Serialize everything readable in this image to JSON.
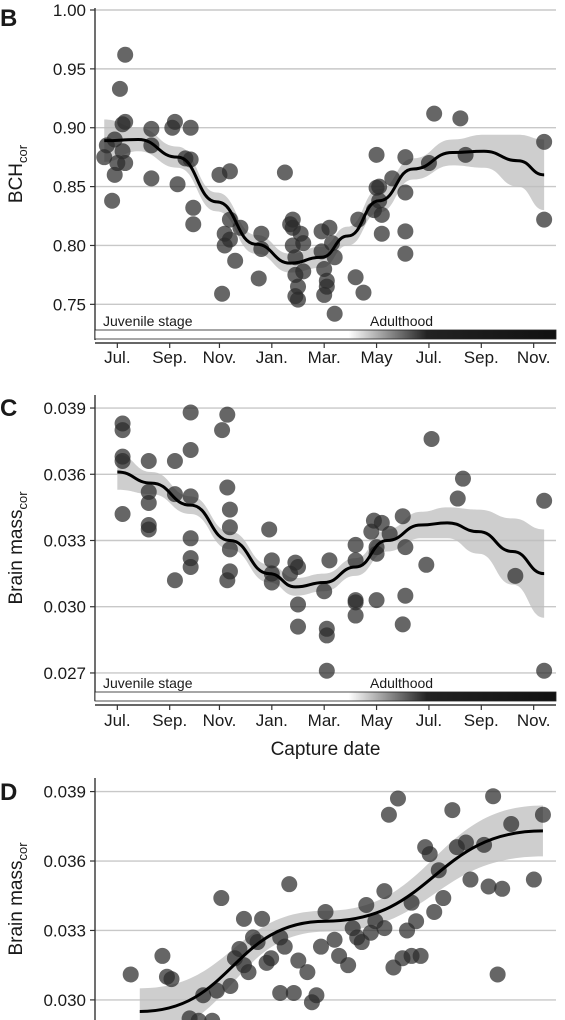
{
  "chart_data": [
    {
      "panel": "B",
      "type": "scatter",
      "ylabel_main": "BCH",
      "ylabel_sub": "cor",
      "ylim": [
        0.735,
        1.0
      ],
      "yticks": [
        "1.00",
        "0.95",
        "0.90",
        "0.85",
        "0.80",
        "0.75"
      ],
      "ytick_values": [
        1.0,
        0.95,
        0.9,
        0.85,
        0.8,
        0.75
      ],
      "xticks": [
        "Jul.",
        "Sep.",
        "Nov.",
        "Jan.",
        "Mar.",
        "May",
        "Jul.",
        "Sep.",
        "Nov."
      ],
      "xtick_values": [
        0.7,
        2.7,
        4.6,
        6.6,
        8.6,
        10.6,
        12.6,
        14.6,
        16.6
      ],
      "xlim": [
        0,
        17.3
      ],
      "stage_labels": [
        "Juvenile stage",
        "Adulthood"
      ],
      "points": [
        [
          0.2,
          0.875
        ],
        [
          0.3,
          0.885
        ],
        [
          0.5,
          0.838
        ],
        [
          0.6,
          0.86
        ],
        [
          0.6,
          0.89
        ],
        [
          0.7,
          0.87
        ],
        [
          0.8,
          0.933
        ],
        [
          0.9,
          0.903
        ],
        [
          1.0,
          0.962
        ],
        [
          1.0,
          0.905
        ],
        [
          1.0,
          0.87
        ],
        [
          0.9,
          0.88
        ],
        [
          2.0,
          0.885
        ],
        [
          2.0,
          0.899
        ],
        [
          2.0,
          0.857
        ],
        [
          2.8,
          0.9
        ],
        [
          2.9,
          0.905
        ],
        [
          3.0,
          0.852
        ],
        [
          3.5,
          0.9
        ],
        [
          3.5,
          0.873
        ],
        [
          3.6,
          0.832
        ],
        [
          3.6,
          0.818
        ],
        [
          3.3,
          0.874
        ],
        [
          4.6,
          0.86
        ],
        [
          4.7,
          0.759
        ],
        [
          4.8,
          0.81
        ],
        [
          4.8,
          0.8
        ],
        [
          5.0,
          0.822
        ],
        [
          5.0,
          0.863
        ],
        [
          5.2,
          0.787
        ],
        [
          5.4,
          0.815
        ],
        [
          5.0,
          0.805
        ],
        [
          6.1,
          0.772
        ],
        [
          6.2,
          0.81
        ],
        [
          6.2,
          0.797
        ],
        [
          7.1,
          0.862
        ],
        [
          7.3,
          0.818
        ],
        [
          7.4,
          0.822
        ],
        [
          7.4,
          0.815
        ],
        [
          7.4,
          0.8
        ],
        [
          7.5,
          0.79
        ],
        [
          7.5,
          0.775
        ],
        [
          7.5,
          0.757
        ],
        [
          7.6,
          0.754
        ],
        [
          7.6,
          0.765
        ],
        [
          7.7,
          0.81
        ],
        [
          7.8,
          0.778
        ],
        [
          7.8,
          0.802
        ],
        [
          8.5,
          0.795
        ],
        [
          8.6,
          0.78
        ],
        [
          8.6,
          0.758
        ],
        [
          8.7,
          0.77
        ],
        [
          8.7,
          0.765
        ],
        [
          8.8,
          0.815
        ],
        [
          8.9,
          0.802
        ],
        [
          9.0,
          0.742
        ],
        [
          9.0,
          0.79
        ],
        [
          8.5,
          0.812
        ],
        [
          9.8,
          0.773
        ],
        [
          9.9,
          0.822
        ],
        [
          10.1,
          0.76
        ],
        [
          10.5,
          0.83
        ],
        [
          10.6,
          0.849
        ],
        [
          10.6,
          0.877
        ],
        [
          10.7,
          0.838
        ],
        [
          10.7,
          0.85
        ],
        [
          10.8,
          0.826
        ],
        [
          10.8,
          0.81
        ],
        [
          11.2,
          0.857
        ],
        [
          11.7,
          0.875
        ],
        [
          11.7,
          0.812
        ],
        [
          11.7,
          0.793
        ],
        [
          11.7,
          0.845
        ],
        [
          12.6,
          0.87
        ],
        [
          12.8,
          0.912
        ],
        [
          13.8,
          0.908
        ],
        [
          14.0,
          0.877
        ],
        [
          17.0,
          0.888
        ],
        [
          17.0,
          0.822
        ]
      ],
      "fit": [
        [
          0.2,
          0.889
        ],
        [
          1.5,
          0.89
        ],
        [
          3.0,
          0.875
        ],
        [
          4.5,
          0.837
        ],
        [
          6.0,
          0.801
        ],
        [
          7.3,
          0.785
        ],
        [
          8.5,
          0.79
        ],
        [
          9.5,
          0.808
        ],
        [
          10.7,
          0.838
        ],
        [
          12.0,
          0.865
        ],
        [
          13.5,
          0.879
        ],
        [
          14.7,
          0.88
        ],
        [
          16.0,
          0.872
        ],
        [
          17.0,
          0.86
        ]
      ],
      "ci_halfwidth": [
        0.018,
        0.01,
        0.009,
        0.008,
        0.008,
        0.008,
        0.009,
        0.008,
        0.01,
        0.009,
        0.011,
        0.014,
        0.022,
        0.03
      ]
    },
    {
      "panel": "C",
      "type": "scatter",
      "ylabel_main": "Brain mass",
      "ylabel_sub": "cor",
      "ylim": [
        0.0265,
        0.0395
      ],
      "yticks": [
        "0.039",
        "0.036",
        "0.033",
        "0.030",
        "0.027"
      ],
      "ytick_values": [
        0.039,
        0.036,
        0.033,
        0.03,
        0.027
      ],
      "xticks": [
        "Jul.",
        "Sep.",
        "Nov.",
        "Jan.",
        "Mar.",
        "May",
        "Jul.",
        "Sep.",
        "Nov."
      ],
      "xtick_values": [
        0.7,
        2.7,
        4.6,
        6.6,
        8.6,
        10.6,
        12.6,
        14.6,
        16.6
      ],
      "xlim": [
        0,
        17.3
      ],
      "xlabel": "Capture date",
      "stage_labels": [
        "Juvenile stage",
        "Adulthood"
      ],
      "points": [
        [
          0.9,
          0.0383
        ],
        [
          0.9,
          0.038
        ],
        [
          0.9,
          0.0368
        ],
        [
          0.9,
          0.0366
        ],
        [
          0.9,
          0.0342
        ],
        [
          1.9,
          0.0366
        ],
        [
          1.9,
          0.0352
        ],
        [
          1.9,
          0.0347
        ],
        [
          1.9,
          0.0337
        ],
        [
          1.9,
          0.0335
        ],
        [
          2.9,
          0.0366
        ],
        [
          2.9,
          0.0351
        ],
        [
          2.9,
          0.0312
        ],
        [
          3.5,
          0.0388
        ],
        [
          3.5,
          0.0371
        ],
        [
          3.5,
          0.035
        ],
        [
          3.5,
          0.0331
        ],
        [
          3.5,
          0.0322
        ],
        [
          3.5,
          0.0318
        ],
        [
          4.7,
          0.038
        ],
        [
          4.9,
          0.0387
        ],
        [
          4.9,
          0.0354
        ],
        [
          5.0,
          0.0344
        ],
        [
          5.0,
          0.0336
        ],
        [
          4.9,
          0.0312
        ],
        [
          5.0,
          0.0316
        ],
        [
          5.0,
          0.0326
        ],
        [
          6.5,
          0.0335
        ],
        [
          6.6,
          0.0321
        ],
        [
          6.6,
          0.0315
        ],
        [
          6.6,
          0.0311
        ],
        [
          7.3,
          0.0315
        ],
        [
          7.5,
          0.032
        ],
        [
          7.6,
          0.0318
        ],
        [
          7.6,
          0.0301
        ],
        [
          7.6,
          0.0291
        ],
        [
          8.6,
          0.0307
        ],
        [
          8.7,
          0.0271
        ],
        [
          8.7,
          0.029
        ],
        [
          8.7,
          0.0287
        ],
        [
          8.8,
          0.0321
        ],
        [
          9.8,
          0.0328
        ],
        [
          9.8,
          0.0321
        ],
        [
          9.8,
          0.0303
        ],
        [
          9.8,
          0.0296
        ],
        [
          9.8,
          0.0302
        ],
        [
          10.4,
          0.0334
        ],
        [
          10.5,
          0.0339
        ],
        [
          10.6,
          0.0324
        ],
        [
          10.6,
          0.0327
        ],
        [
          10.6,
          0.0303
        ],
        [
          10.8,
          0.0338
        ],
        [
          11.1,
          0.0333
        ],
        [
          11.6,
          0.0341
        ],
        [
          11.6,
          0.0292
        ],
        [
          11.7,
          0.0327
        ],
        [
          11.7,
          0.0305
        ],
        [
          12.5,
          0.0319
        ],
        [
          12.7,
          0.0376
        ],
        [
          13.7,
          0.0349
        ],
        [
          13.9,
          0.0358
        ],
        [
          15.9,
          0.0314
        ],
        [
          17.0,
          0.0348
        ],
        [
          17.0,
          0.0271
        ]
      ],
      "fit": [
        [
          0.7,
          0.0361
        ],
        [
          2.0,
          0.0356
        ],
        [
          3.5,
          0.0346
        ],
        [
          5.0,
          0.033
        ],
        [
          6.5,
          0.0315
        ],
        [
          7.5,
          0.0309
        ],
        [
          8.6,
          0.0311
        ],
        [
          9.8,
          0.0318
        ],
        [
          11.0,
          0.033
        ],
        [
          12.3,
          0.0337
        ],
        [
          13.3,
          0.0338
        ],
        [
          14.5,
          0.0334
        ],
        [
          15.8,
          0.0325
        ],
        [
          17.0,
          0.0315
        ]
      ],
      "ci_halfwidth": [
        0.0008,
        0.0005,
        0.0004,
        0.0004,
        0.0004,
        0.0004,
        0.0004,
        0.0004,
        0.0005,
        0.0006,
        0.0007,
        0.001,
        0.0015,
        0.002
      ]
    },
    {
      "panel": "D",
      "type": "scatter",
      "ylabel_main": "Brain mass",
      "ylabel_sub": "cor",
      "ylim": [
        0.0287,
        0.0395
      ],
      "yticks": [
        "0.039",
        "0.036",
        "0.033",
        "0.030"
      ],
      "ytick_values": [
        0.039,
        0.036,
        0.033,
        0.03
      ],
      "xlim": [
        0,
        10
      ],
      "points": [
        [
          0.7,
          0.0311
        ],
        [
          1.4,
          0.0319
        ],
        [
          1.5,
          0.031
        ],
        [
          1.6,
          0.0309
        ],
        [
          2.0,
          0.0292
        ],
        [
          2.2,
          0.0291
        ],
        [
          2.3,
          0.0302
        ],
        [
          2.5,
          0.0291
        ],
        [
          2.6,
          0.0304
        ],
        [
          2.7,
          0.0344
        ],
        [
          2.9,
          0.0306
        ],
        [
          3.0,
          0.0318
        ],
        [
          3.1,
          0.0322
        ],
        [
          3.2,
          0.0315
        ],
        [
          3.2,
          0.0335
        ],
        [
          3.3,
          0.0312
        ],
        [
          3.4,
          0.0327
        ],
        [
          3.5,
          0.0325
        ],
        [
          3.6,
          0.0335
        ],
        [
          3.7,
          0.0316
        ],
        [
          3.8,
          0.0318
        ],
        [
          4.0,
          0.0303
        ],
        [
          4.0,
          0.0327
        ],
        [
          4.1,
          0.0323
        ],
        [
          4.2,
          0.035
        ],
        [
          4.3,
          0.0303
        ],
        [
          4.4,
          0.0317
        ],
        [
          4.6,
          0.0312
        ],
        [
          4.7,
          0.0299
        ],
        [
          4.8,
          0.0302
        ],
        [
          4.9,
          0.0323
        ],
        [
          5.0,
          0.0338
        ],
        [
          5.2,
          0.0326
        ],
        [
          5.3,
          0.0319
        ],
        [
          5.5,
          0.0315
        ],
        [
          5.6,
          0.0331
        ],
        [
          5.7,
          0.0327
        ],
        [
          5.8,
          0.0325
        ],
        [
          5.9,
          0.0341
        ],
        [
          6.0,
          0.0329
        ],
        [
          6.1,
          0.0334
        ],
        [
          6.3,
          0.0331
        ],
        [
          6.3,
          0.0347
        ],
        [
          6.4,
          0.038
        ],
        [
          6.5,
          0.0314
        ],
        [
          6.6,
          0.0387
        ],
        [
          6.7,
          0.0318
        ],
        [
          6.8,
          0.033
        ],
        [
          6.9,
          0.0319
        ],
        [
          6.9,
          0.0342
        ],
        [
          7.0,
          0.0334
        ],
        [
          7.1,
          0.0319
        ],
        [
          7.2,
          0.0366
        ],
        [
          7.3,
          0.0363
        ],
        [
          7.4,
          0.0338
        ],
        [
          7.5,
          0.0356
        ],
        [
          7.6,
          0.0344
        ],
        [
          7.8,
          0.0382
        ],
        [
          7.9,
          0.0366
        ],
        [
          8.1,
          0.0368
        ],
        [
          8.2,
          0.0352
        ],
        [
          8.5,
          0.0367
        ],
        [
          8.6,
          0.0349
        ],
        [
          8.7,
          0.0388
        ],
        [
          8.8,
          0.0311
        ],
        [
          8.9,
          0.0348
        ],
        [
          9.1,
          0.0376
        ],
        [
          9.6,
          0.0352
        ],
        [
          9.8,
          0.038
        ]
      ],
      "fit": [
        [
          0.9,
          0.0295
        ],
        [
          5.0,
          0.0334
        ],
        [
          9.8,
          0.0373
        ]
      ],
      "ci_halfwidth": [
        0.001,
        0.00045,
        0.0011
      ]
    }
  ]
}
